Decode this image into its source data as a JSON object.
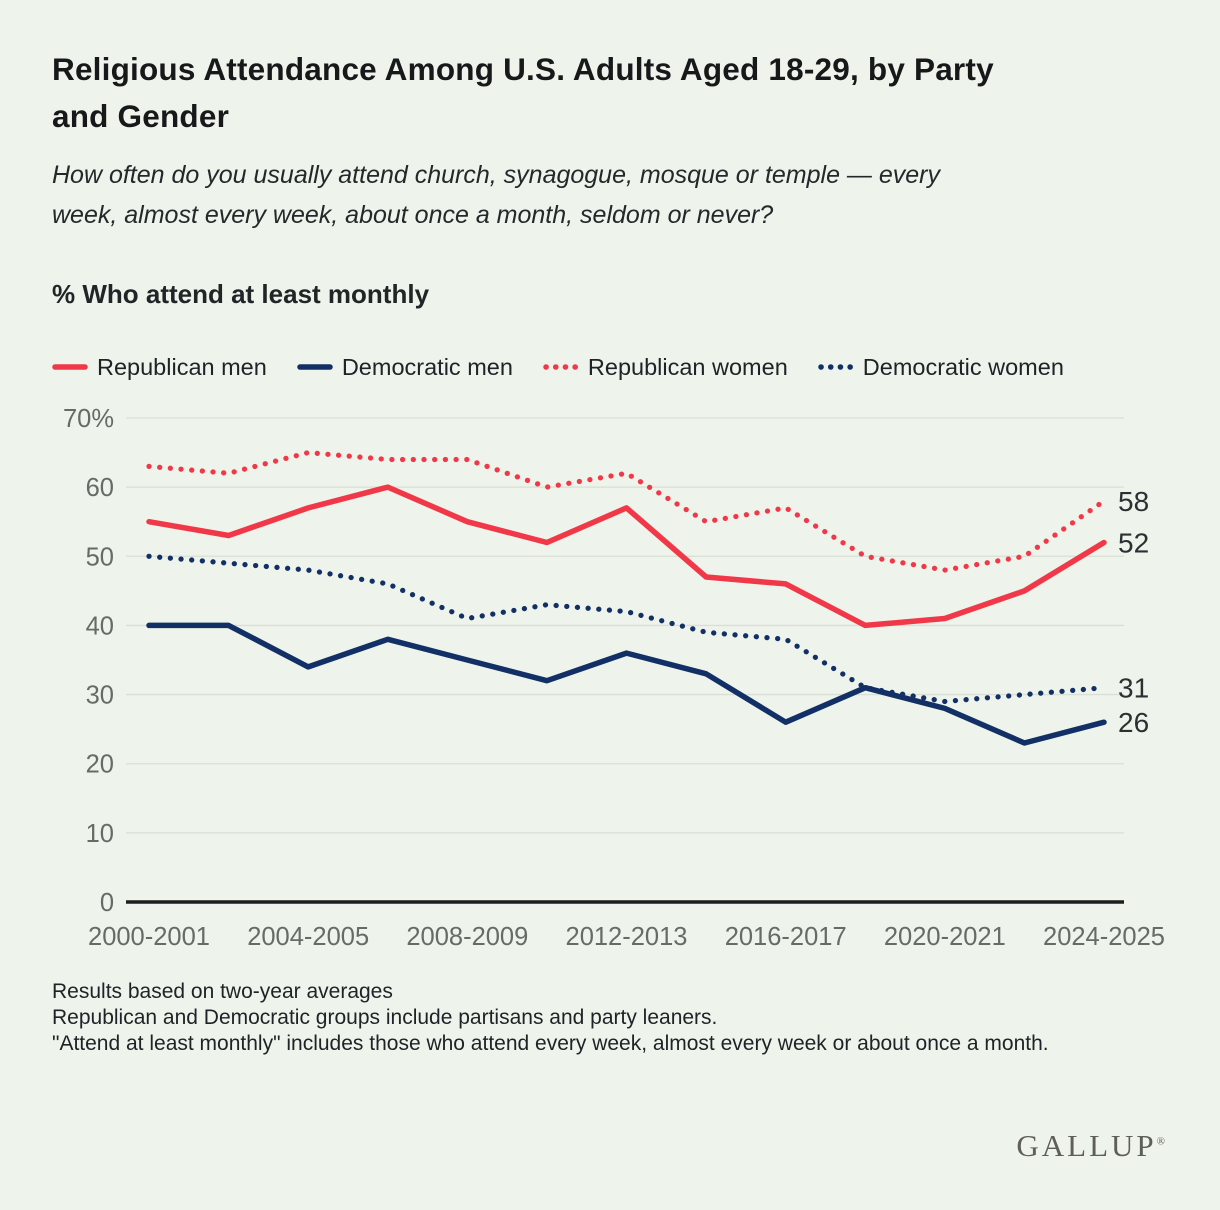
{
  "title": "Religious Attendance Among U.S. Adults Aged 18-29, by Party and Gender",
  "subtitle": "How often do you usually attend church, synagogue, mosque or temple — every week, almost every week, about once a month, seldom or never?",
  "axis_title": "% Who attend at least monthly",
  "chart_data": {
    "type": "line",
    "title": "% Who attend at least monthly",
    "categories": [
      "2000-2001",
      "2002-2003",
      "2004-2005",
      "2006-2007",
      "2008-2009",
      "2010-2011",
      "2012-2013",
      "2014-2015",
      "2016-2017",
      "2018-2019",
      "2020-2021",
      "2022-2023",
      "2024-2025"
    ],
    "x_tick_labels": [
      "2000-2001",
      "2004-2005",
      "2008-2009",
      "2012-2013",
      "2016-2017",
      "2020-2021",
      "2024-2025"
    ],
    "ylim": [
      0,
      70
    ],
    "y_tick_values": [
      0,
      10,
      20,
      30,
      40,
      50,
      60,
      70
    ],
    "y_top_tick_label": "70%",
    "grid": true,
    "legend_position": "top",
    "series": [
      {
        "name": "Republican men",
        "style": "solid",
        "color": "#f13848",
        "values": [
          55,
          53,
          57,
          60,
          55,
          52,
          57,
          47,
          46,
          40,
          41,
          45,
          52
        ],
        "end_label": "52"
      },
      {
        "name": "Democratic men",
        "style": "solid",
        "color": "#123066",
        "values": [
          40,
          40,
          34,
          38,
          35,
          32,
          36,
          33,
          26,
          31,
          28,
          23,
          26
        ],
        "end_label": "26"
      },
      {
        "name": "Republican women",
        "style": "dotted",
        "color": "#f13848",
        "values": [
          63,
          62,
          65,
          64,
          64,
          60,
          62,
          55,
          57,
          50,
          48,
          50,
          58
        ],
        "end_label": "58"
      },
      {
        "name": "Democratic women",
        "style": "dotted",
        "color": "#123066",
        "values": [
          50,
          49,
          48,
          46,
          41,
          43,
          42,
          39,
          38,
          31,
          29,
          30,
          31
        ],
        "end_label": "31"
      }
    ]
  },
  "footnotes": [
    "Results based on two-year averages",
    "Republican and Democratic groups include partisans and party leaners.",
    "\"Attend at least monthly\" includes those who attend every week, almost every week or about once a month."
  ],
  "logo_text": "GALLUP",
  "logo_reg": "®",
  "colors": {
    "background": "#eef3eb",
    "grid_line": "#dadfd6",
    "axis_line": "#1e1e1e",
    "tick_text": "#676b67",
    "end_label_text": "#2d3033"
  }
}
